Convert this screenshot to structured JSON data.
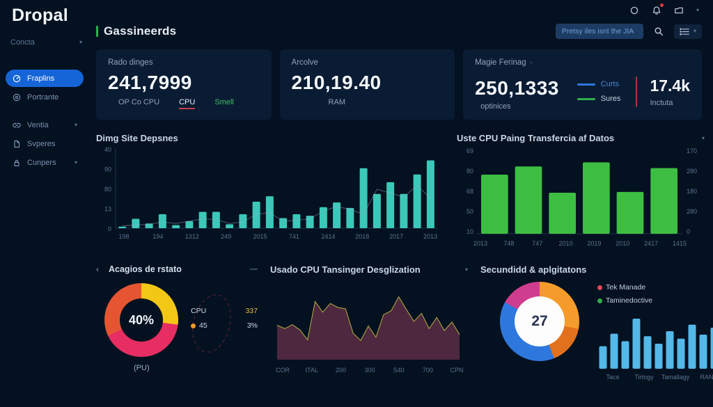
{
  "colors": {
    "page_bg": "#041120",
    "card_bg": "#0a1c33",
    "active_nav": "#1565d8",
    "title_accent": "#2fae4c",
    "red_underline": "#c4404a",
    "red_divider": "#b3353f",
    "search_pill": "#1d3c63"
  },
  "icons": {
    "chevron_down": "▾",
    "chevron_right": "›",
    "chevron_left": "‹",
    "dash": "—"
  },
  "brand": {
    "logo": "Dropal"
  },
  "sidebar": {
    "workspace_label": "Concta",
    "items": [
      {
        "label": "Fraplins"
      },
      {
        "label": "Portrante"
      },
      {
        "label": "Ventia"
      },
      {
        "label": "Svperes"
      },
      {
        "label": "Cunpers"
      }
    ]
  },
  "header": {
    "title": "Gassineerds",
    "search_value": "Pretsy iles isnt the JIA"
  },
  "stat_cards": [
    {
      "label": "Rado dinges",
      "value": "241,7999",
      "sub1": "OP Co CPU",
      "sub2": "CPU",
      "sub3": "Smell"
    },
    {
      "label": "Arcolve",
      "value": "210,19.40",
      "sub1": "RAM"
    },
    {
      "label": "Magie Ferinag",
      "value": "250,1333",
      "sub1": "optinices",
      "legend": [
        {
          "label": "Curts",
          "color": "#2e78dd"
        },
        {
          "label": "Sures",
          "color": "#2fae4c"
        }
      ],
      "secondary_value": "17.4k",
      "secondary_label": "Inctuta"
    }
  ],
  "chart_data": [
    {
      "id": "site-bars",
      "type": "bar",
      "title": "Dimg Site Depsnes",
      "bar_color": "#3cc8b9",
      "line_color": "#93a9c0",
      "y_ticks": [
        "40",
        "90",
        "80",
        "13",
        "0"
      ],
      "x_ticks": [
        "198",
        "194",
        "1312",
        "249",
        "2015",
        "741",
        "2414",
        "2018",
        "2017",
        "2013"
      ],
      "values": [
        2,
        12,
        6,
        18,
        4,
        9,
        21,
        21,
        5,
        18,
        34,
        41,
        13,
        18,
        16,
        27,
        33,
        26,
        77,
        44,
        59,
        44,
        69,
        87
      ],
      "line_values": [
        3,
        4,
        5,
        8,
        6,
        9,
        12,
        11,
        6,
        8,
        18,
        20,
        9,
        10,
        12,
        22,
        28,
        24,
        18,
        50,
        45,
        40,
        55,
        38
      ],
      "ylim": [
        0,
        100
      ],
      "grid": false
    },
    {
      "id": "cpu-bars",
      "type": "bar",
      "title": "Uste CPU Paing Transfercia af Datos",
      "bar_color": "#3dbe43",
      "y_ticks_left": [
        "69",
        "80",
        "68",
        "50",
        "10"
      ],
      "y_ticks_right": [
        "170",
        "280",
        "180",
        "280",
        "0"
      ],
      "x_ticks": [
        "2013",
        "748",
        "747",
        "2010",
        "2019",
        "2010",
        "2417",
        "1415"
      ],
      "values": [
        72,
        82,
        50,
        87,
        51,
        80
      ],
      "ylim": [
        0,
        100
      ],
      "grid": false
    },
    {
      "id": "status-donut",
      "type": "pie",
      "title": "Acagios de rstato",
      "center_label": "40%",
      "bottom_label": "(PU)",
      "segments": [
        {
          "label": "yellow",
          "value": 27,
          "color": "#f2c716"
        },
        {
          "label": "pink",
          "value": 41,
          "color": "#e62e62"
        },
        {
          "label": "orange-red",
          "value": 32,
          "color": "#e65532"
        }
      ],
      "legend": [
        {
          "label": "CPU",
          "value": "337"
        },
        {
          "label": "45",
          "value": "3%",
          "dot_color": "#f09a2d"
        }
      ]
    },
    {
      "id": "cpu-area",
      "type": "area",
      "title": "Usado CPU Tansinger Desglization",
      "fill_color": "#542a42",
      "stroke_color": "#b9b244",
      "x_ticks": [
        "COR",
        "ITAL",
        "200",
        "300",
        "S40",
        "700",
        "CPN"
      ],
      "values": [
        52,
        47,
        53,
        45,
        30,
        88,
        72,
        85,
        79,
        77,
        40,
        29,
        51,
        34,
        68,
        74,
        95,
        76,
        58,
        70,
        47,
        64,
        44,
        57,
        38
      ],
      "ylim": [
        0,
        100
      ]
    },
    {
      "id": "security-donut",
      "type": "pie",
      "title": "Secundidd & aplgitatons",
      "center_label": "27",
      "segments": [
        {
          "label": "orange",
          "value": 28,
          "color": "#f59b2b"
        },
        {
          "label": "amber",
          "value": 16,
          "color": "#e2711d"
        },
        {
          "label": "blue",
          "value": 39,
          "color": "#2e78dd"
        },
        {
          "label": "pink",
          "value": 17,
          "color": "#cf3d8e"
        }
      ],
      "legend": [
        {
          "label": "Tek Manade",
          "color": "#e0485a"
        },
        {
          "label": "Taminedoctive",
          "color": "#2fae4c"
        }
      ]
    },
    {
      "id": "mini-bars",
      "type": "bar",
      "title": "",
      "bar_color": "#54b8e8",
      "x_ticks": [
        "Tace",
        "Tirtogy",
        "Tamallagy",
        "RAN"
      ],
      "values": [
        45,
        70,
        55,
        100,
        65,
        50,
        75,
        60,
        88,
        68,
        82
      ],
      "ylim": [
        0,
        100
      ]
    }
  ]
}
